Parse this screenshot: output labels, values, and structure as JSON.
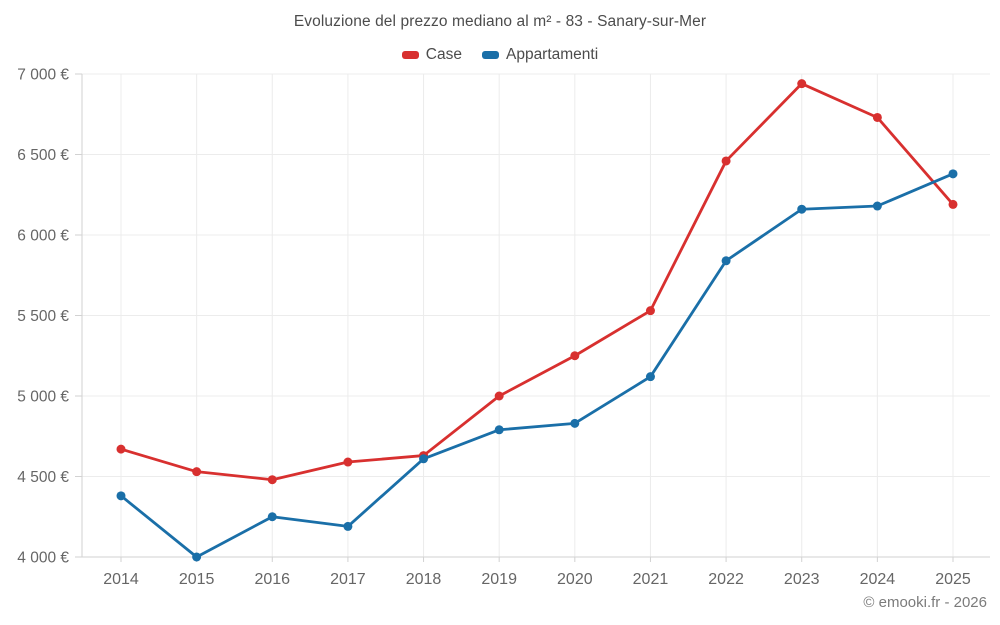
{
  "page": {
    "credit": "© emooki.fr - 2026"
  },
  "chart_data": {
    "type": "line",
    "title": "Evoluzione del prezzo mediano al m² - 83 - Sanary-sur-Mer",
    "categories": [
      "2014",
      "2015",
      "2016",
      "2017",
      "2018",
      "2019",
      "2020",
      "2021",
      "2022",
      "2023",
      "2024",
      "2025"
    ],
    "series": [
      {
        "name": "Case",
        "color": "#d8302f",
        "values": [
          4670,
          4530,
          4480,
          4590,
          4630,
          5000,
          5250,
          5530,
          6460,
          6940,
          6730,
          6190
        ]
      },
      {
        "name": "Appartamenti",
        "color": "#1a6fa8",
        "values": [
          4380,
          4000,
          4250,
          4190,
          4610,
          4790,
          4830,
          5120,
          5840,
          6160,
          6180,
          6380
        ]
      }
    ],
    "xlabel": "",
    "ylabel": "",
    "ylim": [
      4000,
      7000
    ],
    "y_ticks": {
      "values": [
        4000,
        4500,
        5000,
        5500,
        6000,
        6500,
        7000
      ],
      "labels": [
        "4 000 €",
        "4 500 €",
        "5 000 €",
        "5 500 €",
        "6 000 €",
        "6 500 €",
        "7 000 €"
      ]
    },
    "grid": true,
    "legend_position": "top",
    "colors": {
      "background": "#ffffff",
      "gridline": "#ececec",
      "axis_line": "#d2d2d2",
      "tick_label": "#666666",
      "title_text": "#4c4c4c",
      "credit_text": "#7b7b7b"
    }
  }
}
